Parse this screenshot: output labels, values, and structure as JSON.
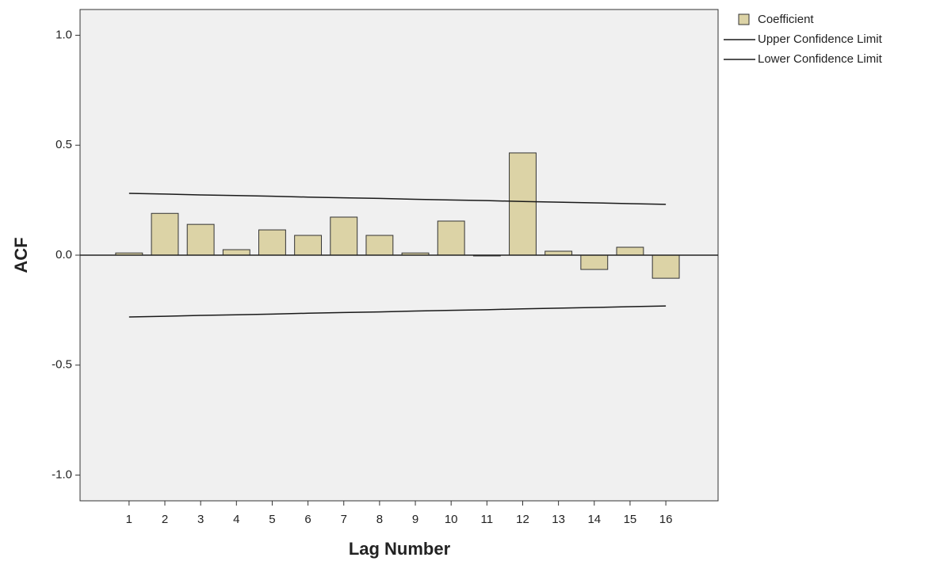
{
  "chart_data": {
    "type": "bar",
    "x": [
      1,
      2,
      3,
      4,
      5,
      6,
      7,
      8,
      9,
      10,
      11,
      12,
      13,
      14,
      15,
      16
    ],
    "series": [
      {
        "name": "Coefficient",
        "color": "#dcd3a6",
        "values": [
          0.01,
          0.19,
          0.14,
          0.025,
          0.115,
          0.09,
          0.173,
          0.09,
          0.01,
          0.155,
          -0.003,
          0.465,
          0.018,
          -0.065,
          0.036,
          -0.105
        ]
      },
      {
        "name": "Upper Confidence Limit",
        "color": "#1a1a1a",
        "values": [
          0.281,
          0.278,
          0.274,
          0.271,
          0.268,
          0.264,
          0.261,
          0.258,
          0.254,
          0.251,
          0.248,
          0.244,
          0.241,
          0.238,
          0.234,
          0.231
        ]
      },
      {
        "name": "Lower Confidence Limit",
        "color": "#1a1a1a",
        "values": [
          -0.281,
          -0.278,
          -0.274,
          -0.271,
          -0.268,
          -0.264,
          -0.261,
          -0.258,
          -0.254,
          -0.251,
          -0.248,
          -0.244,
          -0.241,
          -0.238,
          -0.234,
          -0.231
        ]
      }
    ],
    "xlabel": "Lag Number",
    "ylabel": "ACF",
    "xlim": [
      -0.37,
      17.46
    ],
    "xticks": [
      1,
      2,
      3,
      4,
      5,
      6,
      7,
      8,
      9,
      10,
      11,
      12,
      13,
      14,
      15,
      16
    ],
    "ylim": [
      -1.117,
      1.117
    ],
    "yticks": [
      {
        "value": -1,
        "label": "-1.0"
      },
      -0.5,
      {
        "value": 0,
        "label": "0.0"
      },
      0.5,
      {
        "value": 1,
        "label": "1.0"
      }
    ],
    "background": "#f0f0f0"
  }
}
